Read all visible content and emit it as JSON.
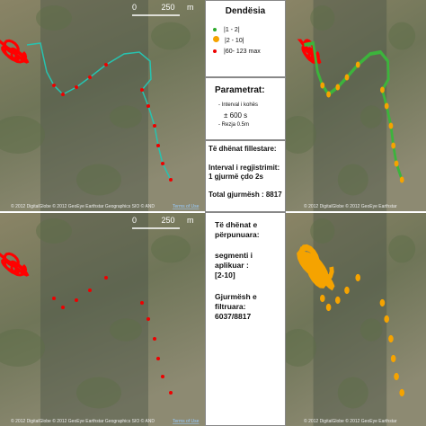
{
  "scale": {
    "zero": "0",
    "distance": "250",
    "unit": "m"
  },
  "legend": {
    "title": "Dendësia",
    "items": [
      "|1 - 2|",
      "|2 - 10|",
      "|60- 123 max"
    ]
  },
  "parameters": {
    "title": "Parametrat:",
    "lines": [
      "- Interval i kohës",
      "± 600 s",
      "- Rezja 0.5m"
    ]
  },
  "raw_data": {
    "title": "Të dhënat fillestare:",
    "interval": "Interval i regjistrimit: 1 gjurmë çdo 2s",
    "total": "Total gjurmësh : 8817"
  },
  "processed_data": {
    "title": "Të dhënat e përpunuara:",
    "segment_label": "segmenti i aplikuar :",
    "segment": "[2-10]",
    "filtered_label": "Gjurmësh e filtruara:",
    "filtered": "6037/8817"
  },
  "attribution": {
    "full": "© 2012 DigitalGlobe © 2012 GeoEye Earthstar Geographics SIO © AND",
    "terms": "Terms of Use",
    "short": "© 2012 DigitalGlobe © 2012 GeoEye Earthstar"
  }
}
